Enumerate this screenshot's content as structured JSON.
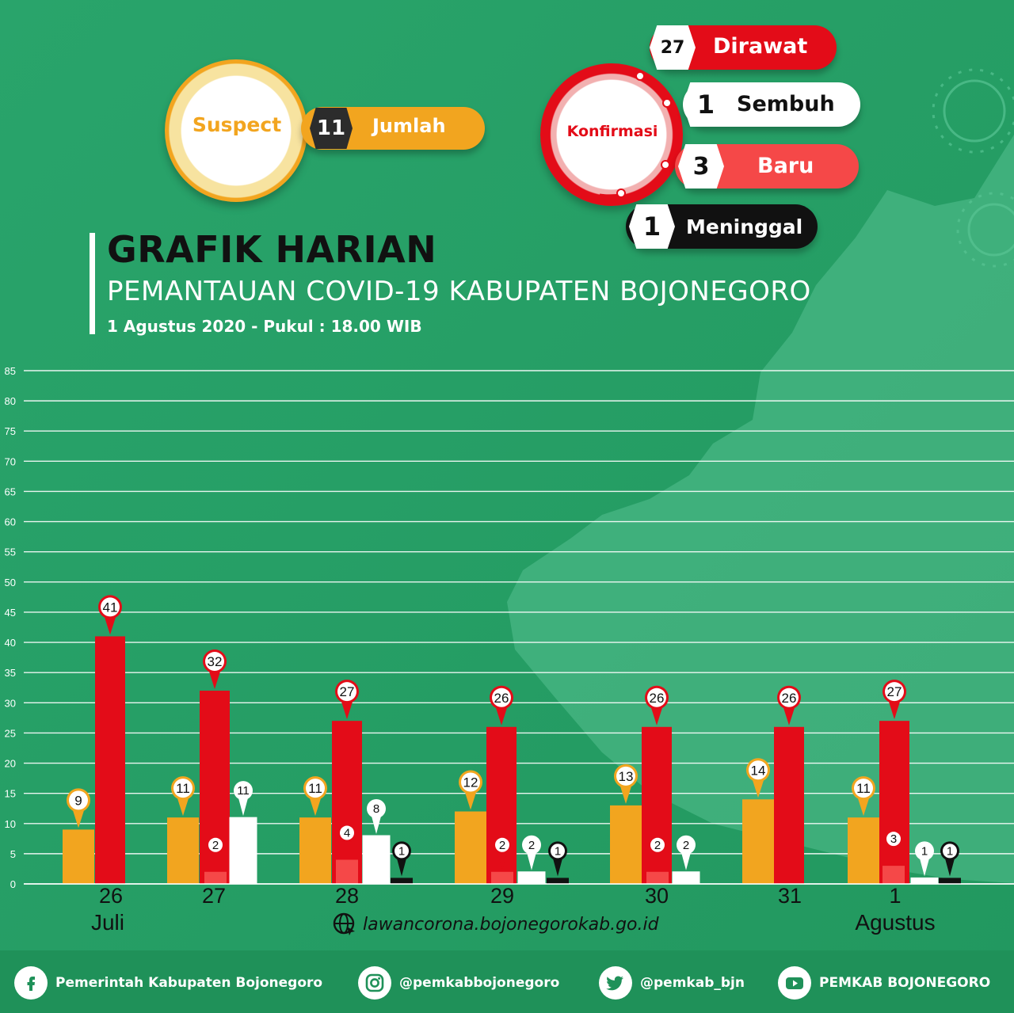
{
  "suspect": {
    "label": "Suspect",
    "count": "11",
    "count_label": "Jumlah"
  },
  "konfirmasi": {
    "label": "Konfirmasi",
    "dirawat": {
      "count": "27",
      "label": "Dirawat"
    },
    "sembuh": {
      "count": "1",
      "label": "Sembuh"
    },
    "baru": {
      "count": "3",
      "label": "Baru"
    },
    "meninggal": {
      "count": "1",
      "label": "Meninggal"
    }
  },
  "header": {
    "title": "GRAFIK HARIAN",
    "subtitle": "PEMANTAUAN COVID-19 KABUPATEN BOJONEGORO",
    "date": "1 Agustus 2020 - Pukul : 18.00 WIB"
  },
  "website": "lawancorona.bojonegorokab.go.id",
  "footer": {
    "facebook": "Pemerintah Kabupaten Bojonegoro",
    "instagram": "@pemkabbojonegoro",
    "twitter": "@pemkab_bjn",
    "youtube": "PEMKAB BOJONEGORO"
  },
  "colors": {
    "background": "#2aa56c",
    "suspect": "#f2a51f",
    "dirawat": "#e30c18",
    "baru": "#f54848",
    "sembuh": "#ffffff",
    "meninggal": "#111111",
    "footer": "#1d8c57"
  },
  "chart_data": {
    "type": "bar",
    "ylim": [
      0,
      85
    ],
    "yticks": [
      0,
      5,
      10,
      15,
      20,
      25,
      30,
      35,
      40,
      45,
      50,
      55,
      60,
      65,
      70,
      75,
      80,
      85
    ],
    "grid": true,
    "categories": [
      "26",
      "27",
      "28",
      "29",
      "30",
      "31",
      "1"
    ],
    "month_labels": [
      {
        "category_index": 0,
        "text": "Juli"
      },
      {
        "category_index": 6,
        "text": "Agustus"
      }
    ],
    "series": [
      {
        "key": "suspect",
        "color": "#f2a51f",
        "label_style": "gold",
        "values": [
          9,
          11,
          11,
          12,
          13,
          14,
          11
        ]
      },
      {
        "key": "dirawat",
        "color": "#e30c18",
        "label_style": "red",
        "values": [
          41,
          32,
          27,
          26,
          26,
          26,
          27
        ]
      },
      {
        "key": "baru",
        "color": "#f54848",
        "label_style": "red",
        "values": [
          null,
          2,
          4,
          2,
          2,
          null,
          3
        ]
      },
      {
        "key": "sembuh",
        "color": "#ffffff",
        "label_style": "white",
        "values": [
          null,
          11,
          8,
          2,
          2,
          null,
          1
        ]
      },
      {
        "key": "meninggal",
        "color": "#111111",
        "label_style": "black",
        "values": [
          null,
          null,
          1,
          1,
          null,
          null,
          1
        ]
      }
    ],
    "value_labels": [
      [
        "9",
        "41",
        null,
        null,
        null
      ],
      [
        "11",
        "32",
        "2",
        "11",
        null
      ],
      [
        "11",
        "27",
        "4",
        "8",
        "1"
      ],
      [
        "12",
        "26",
        "2",
        "2",
        "1"
      ],
      [
        "13",
        "26",
        "2",
        "2",
        null
      ],
      [
        "14",
        "26",
        null,
        null,
        null
      ],
      [
        "11",
        "27",
        "3",
        "1",
        "1"
      ]
    ]
  }
}
